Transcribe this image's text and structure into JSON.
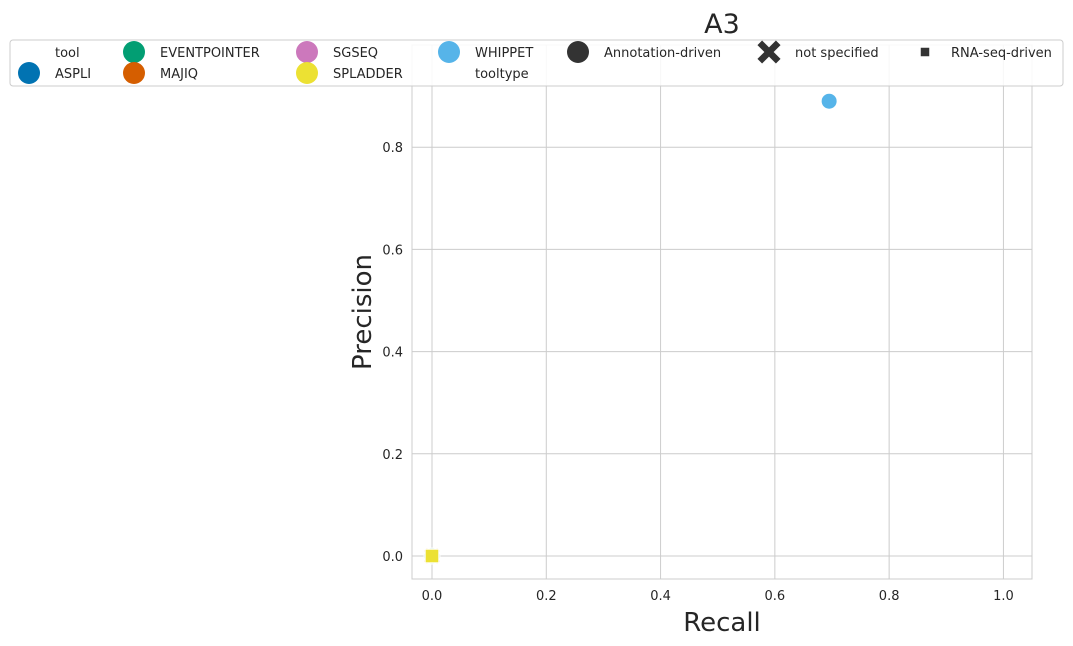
{
  "chart_data": {
    "type": "scatter",
    "title": "A3",
    "xlabel": "Recall",
    "ylabel": "Precision",
    "xlim": [
      -0.035,
      1.05
    ],
    "ylim": [
      -0.045,
      1.0
    ],
    "xticks": [
      0.0,
      0.2,
      0.4,
      0.6,
      0.8,
      1.0
    ],
    "xtick_labels": [
      "0.0",
      "0.2",
      "0.4",
      "0.6",
      "0.8",
      "1.0"
    ],
    "yticks": [
      0.0,
      0.2,
      0.4,
      0.6,
      0.8
    ],
    "ytick_labels": [
      "0.0",
      "0.2",
      "0.4",
      "0.6",
      "0.8"
    ],
    "grid": true,
    "legend_position": "top",
    "points": [
      {
        "tool": "ASPLI",
        "tooltype": "Annotation-driven",
        "x": 0.0,
        "y": 0.0
      },
      {
        "tool": "EVENTPOINTER",
        "tooltype": "Annotation-driven",
        "x": 0.0,
        "y": 0.0
      },
      {
        "tool": "MAJIQ",
        "tooltype": "not specified",
        "x": 0.0,
        "y": 0.0
      },
      {
        "tool": "SGSEQ",
        "tooltype": "RNA-seq-driven",
        "x": 0.0,
        "y": 0.0
      },
      {
        "tool": "SPLADDER",
        "tooltype": "RNA-seq-driven",
        "x": 0.0,
        "y": 0.0
      },
      {
        "tool": "WHIPPET",
        "tooltype": "Annotation-driven",
        "x": 0.695,
        "y": 0.89
      }
    ]
  },
  "legend": {
    "tool_header": "tool",
    "tooltype_header": "tooltype",
    "tools": [
      {
        "name": "ASPLI",
        "color": "#0173b2"
      },
      {
        "name": "EVENTPOINTER",
        "color": "#029e73"
      },
      {
        "name": "MAJIQ",
        "color": "#d55e00"
      },
      {
        "name": "SGSEQ",
        "color": "#cc78bc"
      },
      {
        "name": "SPLADDER",
        "color": "#ece133"
      },
      {
        "name": "WHIPPET",
        "color": "#56b4e9"
      }
    ],
    "tooltypes": [
      {
        "name": "Annotation-driven",
        "marker": "circle"
      },
      {
        "name": "not specified",
        "marker": "x"
      },
      {
        "name": "RNA-seq-driven",
        "marker": "square"
      }
    ],
    "marker_color": "#333333"
  }
}
